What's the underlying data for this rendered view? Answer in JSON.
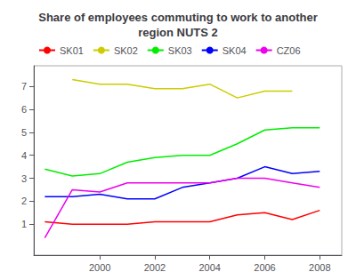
{
  "chart_data": {
    "type": "line",
    "title": "Share of employees commuting to work to another\nregion NUTS 2",
    "x": [
      1998,
      1999,
      2000,
      2001,
      2002,
      2003,
      2004,
      2005,
      2006,
      2007,
      2008
    ],
    "series": [
      {
        "name": "SK01",
        "color": "#FF0000",
        "values": [
          1.1,
          1.0,
          1.0,
          1.0,
          1.1,
          1.1,
          1.1,
          1.4,
          1.5,
          1.2,
          1.6
        ]
      },
      {
        "name": "SK02",
        "color": "#CCCC00",
        "values": [
          null,
          7.3,
          7.1,
          7.1,
          6.9,
          6.9,
          7.1,
          6.5,
          6.8,
          6.8,
          null
        ]
      },
      {
        "name": "SK03",
        "color": "#00EE00",
        "values": [
          3.4,
          3.1,
          3.2,
          3.7,
          3.9,
          4.0,
          4.0,
          4.5,
          5.1,
          5.2,
          5.2
        ]
      },
      {
        "name": "SK04",
        "color": "#0000FF",
        "values": [
          2.2,
          2.2,
          2.3,
          2.1,
          2.1,
          2.6,
          2.8,
          3.0,
          3.5,
          3.2,
          3.3
        ]
      },
      {
        "name": "CZ06",
        "color": "#EE00EE",
        "values": [
          0.4,
          2.5,
          2.4,
          2.8,
          2.8,
          2.8,
          2.8,
          3.0,
          3.0,
          2.8,
          2.6
        ]
      }
    ],
    "xlim": [
      1997.6,
      2008.8
    ],
    "xticks": [
      2000,
      2002,
      2004,
      2006,
      2008
    ],
    "ylim": [
      -0.35,
      7.9
    ],
    "yticks": [
      1,
      2,
      3,
      4,
      5,
      6,
      7
    ],
    "grid": false,
    "legend": "upper left"
  }
}
